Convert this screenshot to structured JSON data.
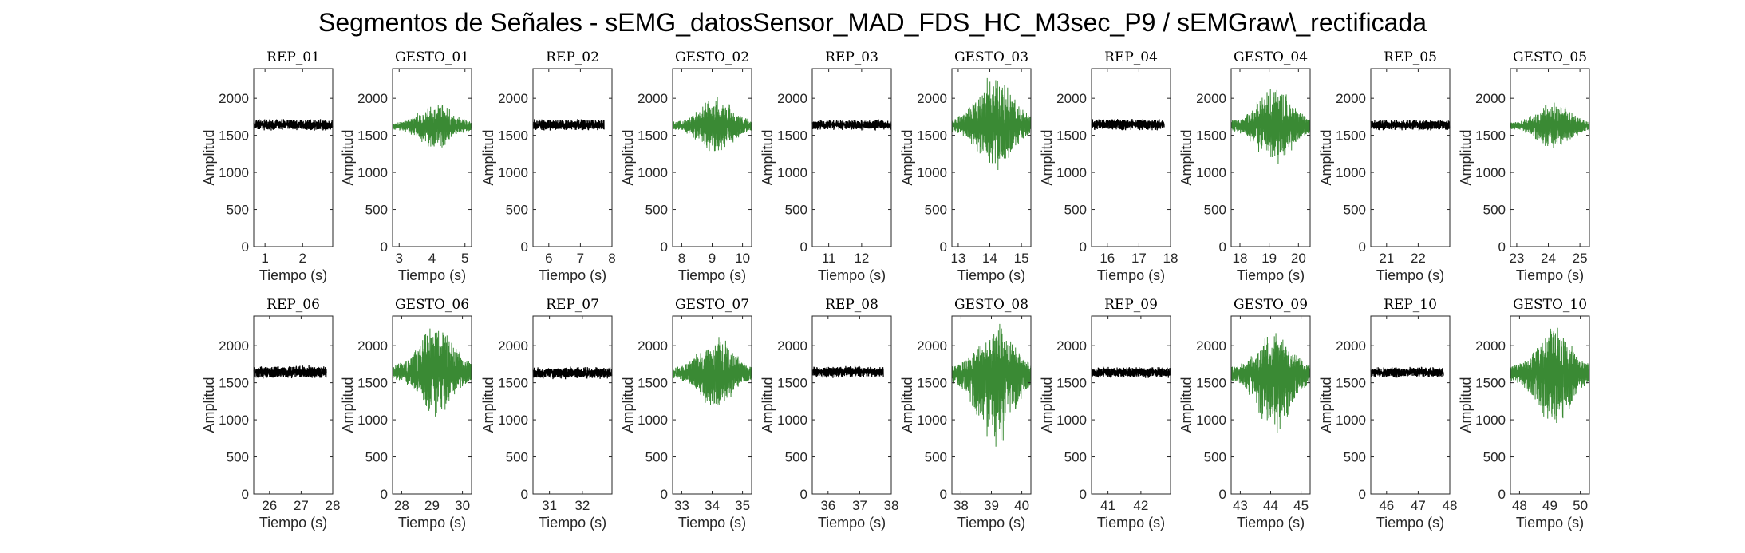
{
  "figure": {
    "title": "Segmentos de Señales - sEMG_datosSensor_MAD_FDS_HC_M3sec_P9 / sEMGraw\\_rectificada"
  },
  "colors": {
    "rep": "#000000",
    "gesto": "#3a8a34",
    "axes": "#262626"
  },
  "chart_data": [
    {
      "type": "line",
      "title": "REP_01",
      "xlabel": "Tiempo (s)",
      "ylabel": "Amplitud",
      "xlim": [
        0.7,
        2.8
      ],
      "ylim": [
        0,
        2400
      ],
      "xticks": [
        1,
        2
      ],
      "yticks": [
        0,
        500,
        1000,
        1500,
        2000
      ],
      "series": [
        {
          "name": "REP_01",
          "color": "#000000",
          "x_range": [
            0.7,
            2.8
          ],
          "center": 1640,
          "spread_min": 1555,
          "spread_max": 1725
        }
      ]
    },
    {
      "type": "line",
      "title": "GESTO_01",
      "xlabel": "Tiempo (s)",
      "ylabel": "Amplitud",
      "xlim": [
        2.8,
        5.2
      ],
      "ylim": [
        0,
        2400
      ],
      "xticks": [
        3,
        4,
        5
      ],
      "yticks": [
        0,
        500,
        1000,
        1500,
        2000
      ],
      "series": [
        {
          "name": "GESTO_01",
          "color": "#3a8a34",
          "x_range": [
            2.8,
            5.2
          ],
          "center": 1620,
          "spread_min": 1300,
          "spread_max": 1960
        }
      ]
    },
    {
      "type": "line",
      "title": "REP_02",
      "xlabel": "Tiempo (s)",
      "ylabel": "Amplitud",
      "xlim": [
        5.5,
        8
      ],
      "ylim": [
        0,
        2400
      ],
      "xticks": [
        6,
        7,
        8
      ],
      "yticks": [
        0,
        500,
        1000,
        1500,
        2000
      ],
      "series": [
        {
          "name": "REP_02",
          "color": "#000000",
          "x_range": [
            5.5,
            7.75
          ],
          "center": 1640,
          "spread_min": 1555,
          "spread_max": 1725
        }
      ]
    },
    {
      "type": "line",
      "title": "GESTO_02",
      "xlabel": "Tiempo (s)",
      "ylabel": "Amplitud",
      "xlim": [
        7.7,
        10.3
      ],
      "ylim": [
        0,
        2400
      ],
      "xticks": [
        8,
        9,
        10
      ],
      "yticks": [
        0,
        500,
        1000,
        1500,
        2000
      ],
      "series": [
        {
          "name": "GESTO_02",
          "color": "#3a8a34",
          "x_range": [
            7.7,
            10.3
          ],
          "center": 1630,
          "spread_min": 1240,
          "spread_max": 2030
        }
      ]
    },
    {
      "type": "line",
      "title": "REP_03",
      "xlabel": "Tiempo (s)",
      "ylabel": "Amplitud",
      "xlim": [
        10.5,
        12.9
      ],
      "ylim": [
        0,
        2400
      ],
      "xticks": [
        11,
        12
      ],
      "yticks": [
        0,
        500,
        1000,
        1500,
        2000
      ],
      "series": [
        {
          "name": "REP_03",
          "color": "#000000",
          "x_range": [
            10.5,
            12.9
          ],
          "center": 1640,
          "spread_min": 1560,
          "spread_max": 1720
        }
      ]
    },
    {
      "type": "line",
      "title": "GESTO_03",
      "xlabel": "Tiempo (s)",
      "ylabel": "Amplitud",
      "xlim": [
        12.8,
        15.3
      ],
      "ylim": [
        0,
        2400
      ],
      "xticks": [
        13,
        14,
        15
      ],
      "yticks": [
        0,
        500,
        1000,
        1500,
        2000
      ],
      "series": [
        {
          "name": "GESTO_03",
          "color": "#3a8a34",
          "x_range": [
            12.8,
            15.3
          ],
          "center": 1630,
          "spread_min": 1000,
          "spread_max": 2380
        }
      ]
    },
    {
      "type": "line",
      "title": "REP_04",
      "xlabel": "Tiempo (s)",
      "ylabel": "Amplitud",
      "xlim": [
        15.5,
        18
      ],
      "ylim": [
        0,
        2400
      ],
      "xticks": [
        16,
        17,
        18
      ],
      "yticks": [
        0,
        500,
        1000,
        1500,
        2000
      ],
      "series": [
        {
          "name": "REP_04",
          "color": "#000000",
          "x_range": [
            15.5,
            17.8
          ],
          "center": 1650,
          "spread_min": 1560,
          "spread_max": 1730
        }
      ]
    },
    {
      "type": "line",
      "title": "GESTO_04",
      "xlabel": "Tiempo (s)",
      "ylabel": "Amplitud",
      "xlim": [
        17.7,
        20.4
      ],
      "ylim": [
        0,
        2400
      ],
      "xticks": [
        18,
        19,
        20
      ],
      "yticks": [
        0,
        500,
        1000,
        1500,
        2000
      ],
      "series": [
        {
          "name": "GESTO_04",
          "color": "#3a8a34",
          "x_range": [
            17.7,
            20.4
          ],
          "center": 1630,
          "spread_min": 1060,
          "spread_max": 2170
        }
      ]
    },
    {
      "type": "line",
      "title": "REP_05",
      "xlabel": "Tiempo (s)",
      "ylabel": "Amplitud",
      "xlim": [
        20.5,
        23
      ],
      "ylim": [
        0,
        2400
      ],
      "xticks": [
        21,
        22
      ],
      "yticks": [
        0,
        500,
        1000,
        1500,
        2000
      ],
      "series": [
        {
          "name": "REP_05",
          "color": "#000000",
          "x_range": [
            20.5,
            23
          ],
          "center": 1640,
          "spread_min": 1560,
          "spread_max": 1720
        }
      ]
    },
    {
      "type": "line",
      "title": "GESTO_05",
      "xlabel": "Tiempo (s)",
      "ylabel": "Amplitud",
      "xlim": [
        22.8,
        25.3
      ],
      "ylim": [
        0,
        2400
      ],
      "xticks": [
        23,
        24,
        25
      ],
      "yticks": [
        0,
        500,
        1000,
        1500,
        2000
      ],
      "series": [
        {
          "name": "GESTO_05",
          "color": "#3a8a34",
          "x_range": [
            22.8,
            25.3
          ],
          "center": 1630,
          "spread_min": 1290,
          "spread_max": 1960
        }
      ]
    },
    {
      "type": "line",
      "title": "REP_06",
      "xlabel": "Tiempo (s)",
      "ylabel": "Amplitud",
      "xlim": [
        25.5,
        28
      ],
      "ylim": [
        0,
        2400
      ],
      "xticks": [
        26,
        27,
        28
      ],
      "yticks": [
        0,
        500,
        1000,
        1500,
        2000
      ],
      "series": [
        {
          "name": "REP_06",
          "color": "#000000",
          "x_range": [
            25.5,
            27.8
          ],
          "center": 1640,
          "spread_min": 1550,
          "spread_max": 1740
        }
      ]
    },
    {
      "type": "line",
      "title": "GESTO_06",
      "xlabel": "Tiempo (s)",
      "ylabel": "Amplitud",
      "xlim": [
        27.7,
        30.3
      ],
      "ylim": [
        0,
        2400
      ],
      "xticks": [
        28,
        29,
        30
      ],
      "yticks": [
        0,
        500,
        1000,
        1500,
        2000
      ],
      "series": [
        {
          "name": "GESTO_06",
          "color": "#3a8a34",
          "x_range": [
            27.7,
            30.3
          ],
          "center": 1630,
          "spread_min": 1040,
          "spread_max": 2380
        }
      ]
    },
    {
      "type": "line",
      "title": "REP_07",
      "xlabel": "Tiempo (s)",
      "ylabel": "Amplitud",
      "xlim": [
        30.5,
        32.9
      ],
      "ylim": [
        0,
        2400
      ],
      "xticks": [
        31,
        32
      ],
      "yticks": [
        0,
        500,
        1000,
        1500,
        2000
      ],
      "series": [
        {
          "name": "REP_07",
          "color": "#000000",
          "x_range": [
            30.5,
            32.9
          ],
          "center": 1630,
          "spread_min": 1540,
          "spread_max": 1720
        }
      ]
    },
    {
      "type": "line",
      "title": "GESTO_07",
      "xlabel": "Tiempo (s)",
      "ylabel": "Amplitud",
      "xlim": [
        32.7,
        35.3
      ],
      "ylim": [
        0,
        2400
      ],
      "xticks": [
        33,
        34,
        35
      ],
      "yticks": [
        0,
        500,
        1000,
        1500,
        2000
      ],
      "series": [
        {
          "name": "GESTO_07",
          "color": "#3a8a34",
          "x_range": [
            32.7,
            35.3
          ],
          "center": 1630,
          "spread_min": 1100,
          "spread_max": 2150
        }
      ]
    },
    {
      "type": "line",
      "title": "REP_08",
      "xlabel": "Tiempo (s)",
      "ylabel": "Amplitud",
      "xlim": [
        35.5,
        38
      ],
      "ylim": [
        0,
        2400
      ],
      "xticks": [
        36,
        37,
        38
      ],
      "yticks": [
        0,
        500,
        1000,
        1500,
        2000
      ],
      "series": [
        {
          "name": "REP_08",
          "color": "#000000",
          "x_range": [
            35.5,
            37.75
          ],
          "center": 1650,
          "spread_min": 1560,
          "spread_max": 1730
        }
      ]
    },
    {
      "type": "line",
      "title": "GESTO_08",
      "xlabel": "Tiempo (s)",
      "ylabel": "Amplitud",
      "xlim": [
        37.7,
        40.3
      ],
      "ylim": [
        0,
        2400
      ],
      "xticks": [
        38,
        39,
        40
      ],
      "yticks": [
        0,
        500,
        1000,
        1500,
        2000
      ],
      "series": [
        {
          "name": "GESTO_08",
          "color": "#3a8a34",
          "x_range": [
            37.7,
            40.3
          ],
          "center": 1630,
          "spread_min": 560,
          "spread_max": 2340
        }
      ]
    },
    {
      "type": "line",
      "title": "REP_09",
      "xlabel": "Tiempo (s)",
      "ylabel": "Amplitud",
      "xlim": [
        40.5,
        42.9
      ],
      "ylim": [
        0,
        2400
      ],
      "xticks": [
        41,
        42
      ],
      "yticks": [
        0,
        500,
        1000,
        1500,
        2000
      ],
      "series": [
        {
          "name": "REP_09",
          "color": "#000000",
          "x_range": [
            40.5,
            42.9
          ],
          "center": 1640,
          "spread_min": 1560,
          "spread_max": 1720
        }
      ]
    },
    {
      "type": "line",
      "title": "GESTO_09",
      "xlabel": "Tiempo (s)",
      "ylabel": "Amplitud",
      "xlim": [
        42.7,
        45.3
      ],
      "ylim": [
        0,
        2400
      ],
      "xticks": [
        43,
        44,
        45
      ],
      "yticks": [
        0,
        500,
        1000,
        1500,
        2000
      ],
      "series": [
        {
          "name": "GESTO_09",
          "color": "#3a8a34",
          "x_range": [
            42.7,
            45.3
          ],
          "center": 1630,
          "spread_min": 780,
          "spread_max": 2230
        }
      ]
    },
    {
      "type": "line",
      "title": "REP_10",
      "xlabel": "Tiempo (s)",
      "ylabel": "Amplitud",
      "xlim": [
        45.5,
        48
      ],
      "ylim": [
        0,
        2400
      ],
      "xticks": [
        46,
        47,
        48
      ],
      "yticks": [
        0,
        500,
        1000,
        1500,
        2000
      ],
      "series": [
        {
          "name": "REP_10",
          "color": "#000000",
          "x_range": [
            45.5,
            47.8
          ],
          "center": 1640,
          "spread_min": 1560,
          "spread_max": 1720
        }
      ]
    },
    {
      "type": "line",
      "title": "GESTO_10",
      "xlabel": "Tiempo (s)",
      "ylabel": "Amplitud",
      "xlim": [
        47.7,
        50.3
      ],
      "ylim": [
        0,
        2400
      ],
      "xticks": [
        48,
        49,
        50
      ],
      "yticks": [
        0,
        500,
        1000,
        1500,
        2000
      ],
      "series": [
        {
          "name": "GESTO_10",
          "color": "#3a8a34",
          "x_range": [
            47.7,
            50.3
          ],
          "center": 1630,
          "spread_min": 860,
          "spread_max": 2300
        }
      ]
    }
  ]
}
